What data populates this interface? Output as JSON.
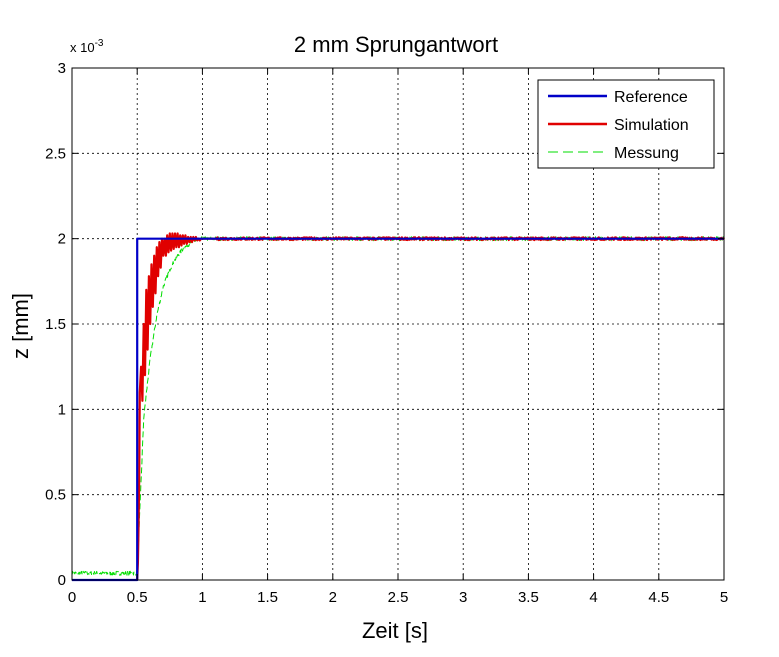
{
  "chart_data": {
    "type": "line",
    "title": "2 mm Sprungantwort",
    "xlabel": "Zeit [s]",
    "ylabel": "z [mm]",
    "y_multiplier": "x 10",
    "y_exponent": "-3",
    "xlim": [
      0,
      5
    ],
    "ylim": [
      0,
      0.003
    ],
    "grid": true,
    "legend_position": "top-right",
    "x_ticks": [
      {
        "value": 0,
        "label": "0"
      },
      {
        "value": 0.5,
        "label": "0.5"
      },
      {
        "value": 1,
        "label": "1"
      },
      {
        "value": 1.5,
        "label": "1.5"
      },
      {
        "value": 2,
        "label": "2"
      },
      {
        "value": 2.5,
        "label": "2.5"
      },
      {
        "value": 3,
        "label": "3"
      },
      {
        "value": 3.5,
        "label": "3.5"
      },
      {
        "value": 4,
        "label": "4"
      },
      {
        "value": 4.5,
        "label": "4.5"
      },
      {
        "value": 5,
        "label": "5"
      }
    ],
    "y_ticks": [
      {
        "value": 0,
        "label": "0"
      },
      {
        "value": 0.0005,
        "label": "0.5"
      },
      {
        "value": 0.001,
        "label": "1"
      },
      {
        "value": 0.0015,
        "label": "1.5"
      },
      {
        "value": 0.002,
        "label": "2"
      },
      {
        "value": 0.0025,
        "label": "2.5"
      },
      {
        "value": 0.003,
        "label": "3"
      }
    ],
    "series": [
      {
        "name": "Reference",
        "color": "#0000c8",
        "style": "solid",
        "x": [
          0.0,
          0.5,
          0.5,
          5.0
        ],
        "y": [
          0.0,
          0.0,
          0.002,
          0.002
        ]
      },
      {
        "name": "Simulation",
        "color": "#e00000",
        "style": "solid",
        "x": [
          0.5,
          0.505,
          0.51,
          0.515,
          0.52,
          0.53,
          0.54,
          0.55,
          0.56,
          0.57,
          0.58,
          0.59,
          0.6,
          0.61,
          0.62,
          0.63,
          0.64,
          0.65,
          0.66,
          0.67,
          0.68,
          0.69,
          0.7,
          0.71,
          0.72,
          0.73,
          0.74,
          0.75,
          0.76,
          0.77,
          0.78,
          0.79,
          0.8,
          0.81,
          0.82,
          0.83,
          0.84,
          0.85,
          0.86,
          0.87,
          0.88,
          0.89,
          0.9,
          0.91,
          0.92,
          0.93,
          0.94,
          0.95,
          0.96,
          0.97,
          0.98,
          0.99,
          1.0,
          1.05,
          1.1
        ],
        "y": [
          0.0,
          0.0001,
          0.0003,
          0.0006,
          0.0011,
          0.00125,
          0.00105,
          0.0015,
          0.0012,
          0.0017,
          0.00135,
          0.00178,
          0.0015,
          0.00185,
          0.0016,
          0.0019,
          0.00168,
          0.00195,
          0.00178,
          0.00198,
          0.00183,
          0.002,
          0.0019,
          0.002,
          0.0019,
          0.00202,
          0.00192,
          0.00203,
          0.00193,
          0.00203,
          0.00194,
          0.00203,
          0.00195,
          0.00203,
          0.00195,
          0.00202,
          0.00196,
          0.00202,
          0.00197,
          0.00202,
          0.00197,
          0.00201,
          0.00198,
          0.00201,
          0.00198,
          0.00201,
          0.00199,
          0.00201,
          0.00199,
          0.002,
          0.00199,
          0.002,
          0.002,
          0.002,
          0.002
        ]
      },
      {
        "name": "Messung",
        "color": "#00dd00",
        "style": "dashed",
        "noise": 1.2e-05,
        "x": [
          0.0,
          0.49,
          0.5,
          0.52,
          0.55,
          0.6,
          0.65,
          0.7,
          0.75,
          0.8,
          0.85,
          0.9,
          0.95,
          1.0,
          1.05,
          1.1,
          5.0
        ],
        "y": [
          4e-05,
          4e-05,
          5e-05,
          0.0004,
          0.00095,
          0.0013,
          0.00155,
          0.00172,
          0.00182,
          0.00189,
          0.00194,
          0.00197,
          0.00199,
          0.002,
          0.002,
          0.002,
          0.002
        ]
      }
    ]
  }
}
